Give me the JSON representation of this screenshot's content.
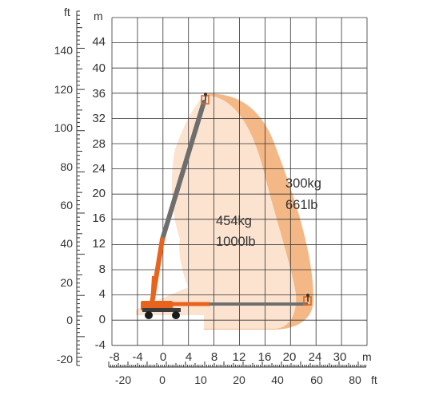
{
  "units": {
    "ft_left": "ft",
    "m_left": "m",
    "m_bottom": "m",
    "ft_bottom": "ft"
  },
  "axes": {
    "y_m_ticks": [
      "44",
      "40",
      "36",
      "32",
      "28",
      "24",
      "20",
      "16",
      "12",
      "8",
      "4",
      "0",
      "-4"
    ],
    "y_ft_ticks": [
      "140",
      "120",
      "100",
      "80",
      "60",
      "40",
      "20",
      "0",
      "-20"
    ],
    "x_m_ticks": [
      "-8",
      "-4",
      "0",
      "4",
      "8",
      "12",
      "16",
      "20",
      "24",
      "30"
    ],
    "x_ft_ticks": [
      "-20",
      "0",
      "10",
      "20",
      "40",
      "60",
      "80"
    ]
  },
  "capacity": {
    "inner_kg": "454kg",
    "inner_lb": "1000lb",
    "outer_kg": "300kg",
    "outer_lb": "661lb"
  },
  "colors": {
    "outer_zone": "#f4b886",
    "inner_zone": "#fbe3d0",
    "boom_gray": "#6e6e6e",
    "boom_orange": "#e8641e",
    "grid": "#333333"
  }
}
